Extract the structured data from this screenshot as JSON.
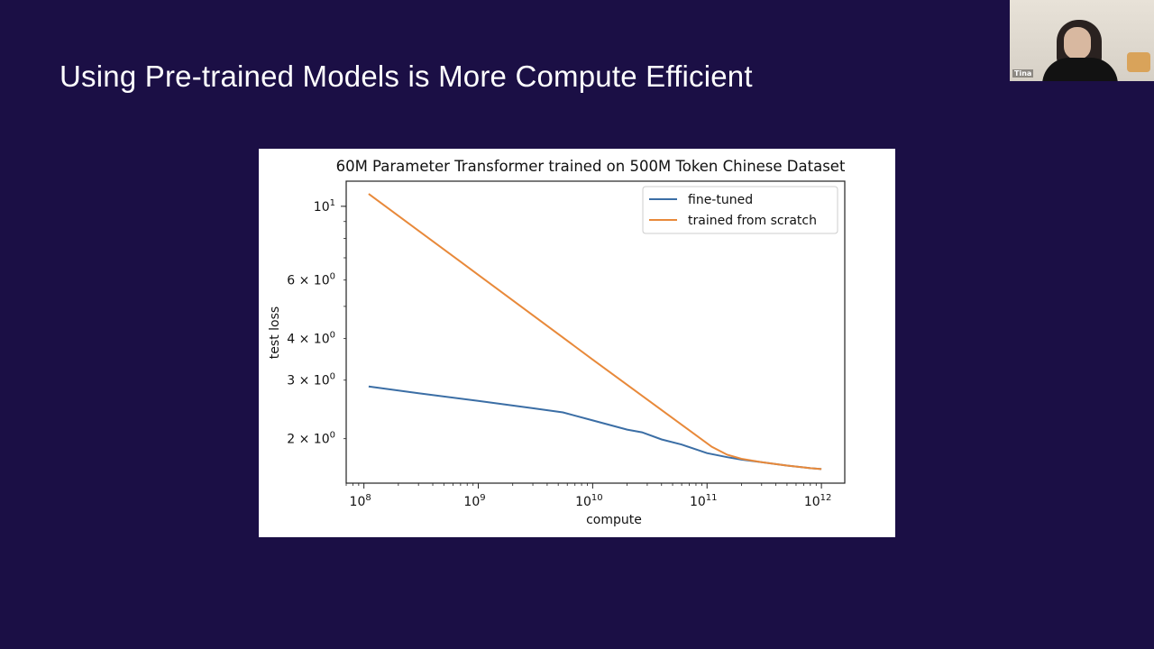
{
  "slide": {
    "title": "Using Pre-trained Models is More Compute Efficient"
  },
  "webcam": {
    "participant_name": "Tina"
  },
  "chart_data": {
    "type": "line",
    "title": "60M Parameter Transformer trained on 500M Token Chinese Dataset",
    "xlabel": "compute",
    "ylabel": "test loss",
    "xscale": "log",
    "yscale": "log",
    "xlim": [
      70000000.0,
      1600000000000.0
    ],
    "ylim": [
      1.47,
      11.9
    ],
    "x_ticks": [
      {
        "value": 100000000.0,
        "base": "10",
        "exp": "8"
      },
      {
        "value": 1000000000.0,
        "base": "10",
        "exp": "9"
      },
      {
        "value": 10000000000.0,
        "base": "10",
        "exp": "10"
      },
      {
        "value": 100000000000.0,
        "base": "10",
        "exp": "11"
      },
      {
        "value": 1000000000000.0,
        "base": "10",
        "exp": "12"
      }
    ],
    "y_ticks": [
      {
        "value": 10,
        "base": "10",
        "exp": "1"
      },
      {
        "value": 6,
        "base": "6 × 10",
        "exp": "0"
      },
      {
        "value": 4,
        "base": "4 × 10",
        "exp": "0"
      },
      {
        "value": 3,
        "base": "3 × 10",
        "exp": "0"
      },
      {
        "value": 2,
        "base": "2 × 10",
        "exp": "0"
      }
    ],
    "grid": false,
    "legend_position": "top-right",
    "series": [
      {
        "name": "fine-tuned",
        "color": "#3b6ea5",
        "x": [
          110000000.0,
          300000000.0,
          1000000000.0,
          3000000000.0,
          5500000000.0,
          10000000000.0,
          20000000000.0,
          27000000000.0,
          40000000000.0,
          60000000000.0,
          100000000000.0,
          150000000000.0,
          200000000000.0,
          300000000000.0,
          500000000000.0,
          800000000000.0,
          1000000000000.0
        ],
        "y": [
          2.87,
          2.74,
          2.6,
          2.47,
          2.4,
          2.27,
          2.13,
          2.09,
          1.99,
          1.92,
          1.81,
          1.76,
          1.73,
          1.7,
          1.66,
          1.63,
          1.62
        ]
      },
      {
        "name": "trained from scratch",
        "color": "#e8893a",
        "x": [
          110000000.0,
          1000000000.0,
          10000000000.0,
          110000000000.0,
          150000000000.0,
          200000000000.0,
          300000000000.0,
          500000000000.0,
          800000000000.0,
          1000000000000.0
        ],
        "y": [
          10.9,
          6.22,
          3.46,
          1.89,
          1.79,
          1.74,
          1.7,
          1.66,
          1.63,
          1.62
        ]
      }
    ]
  }
}
